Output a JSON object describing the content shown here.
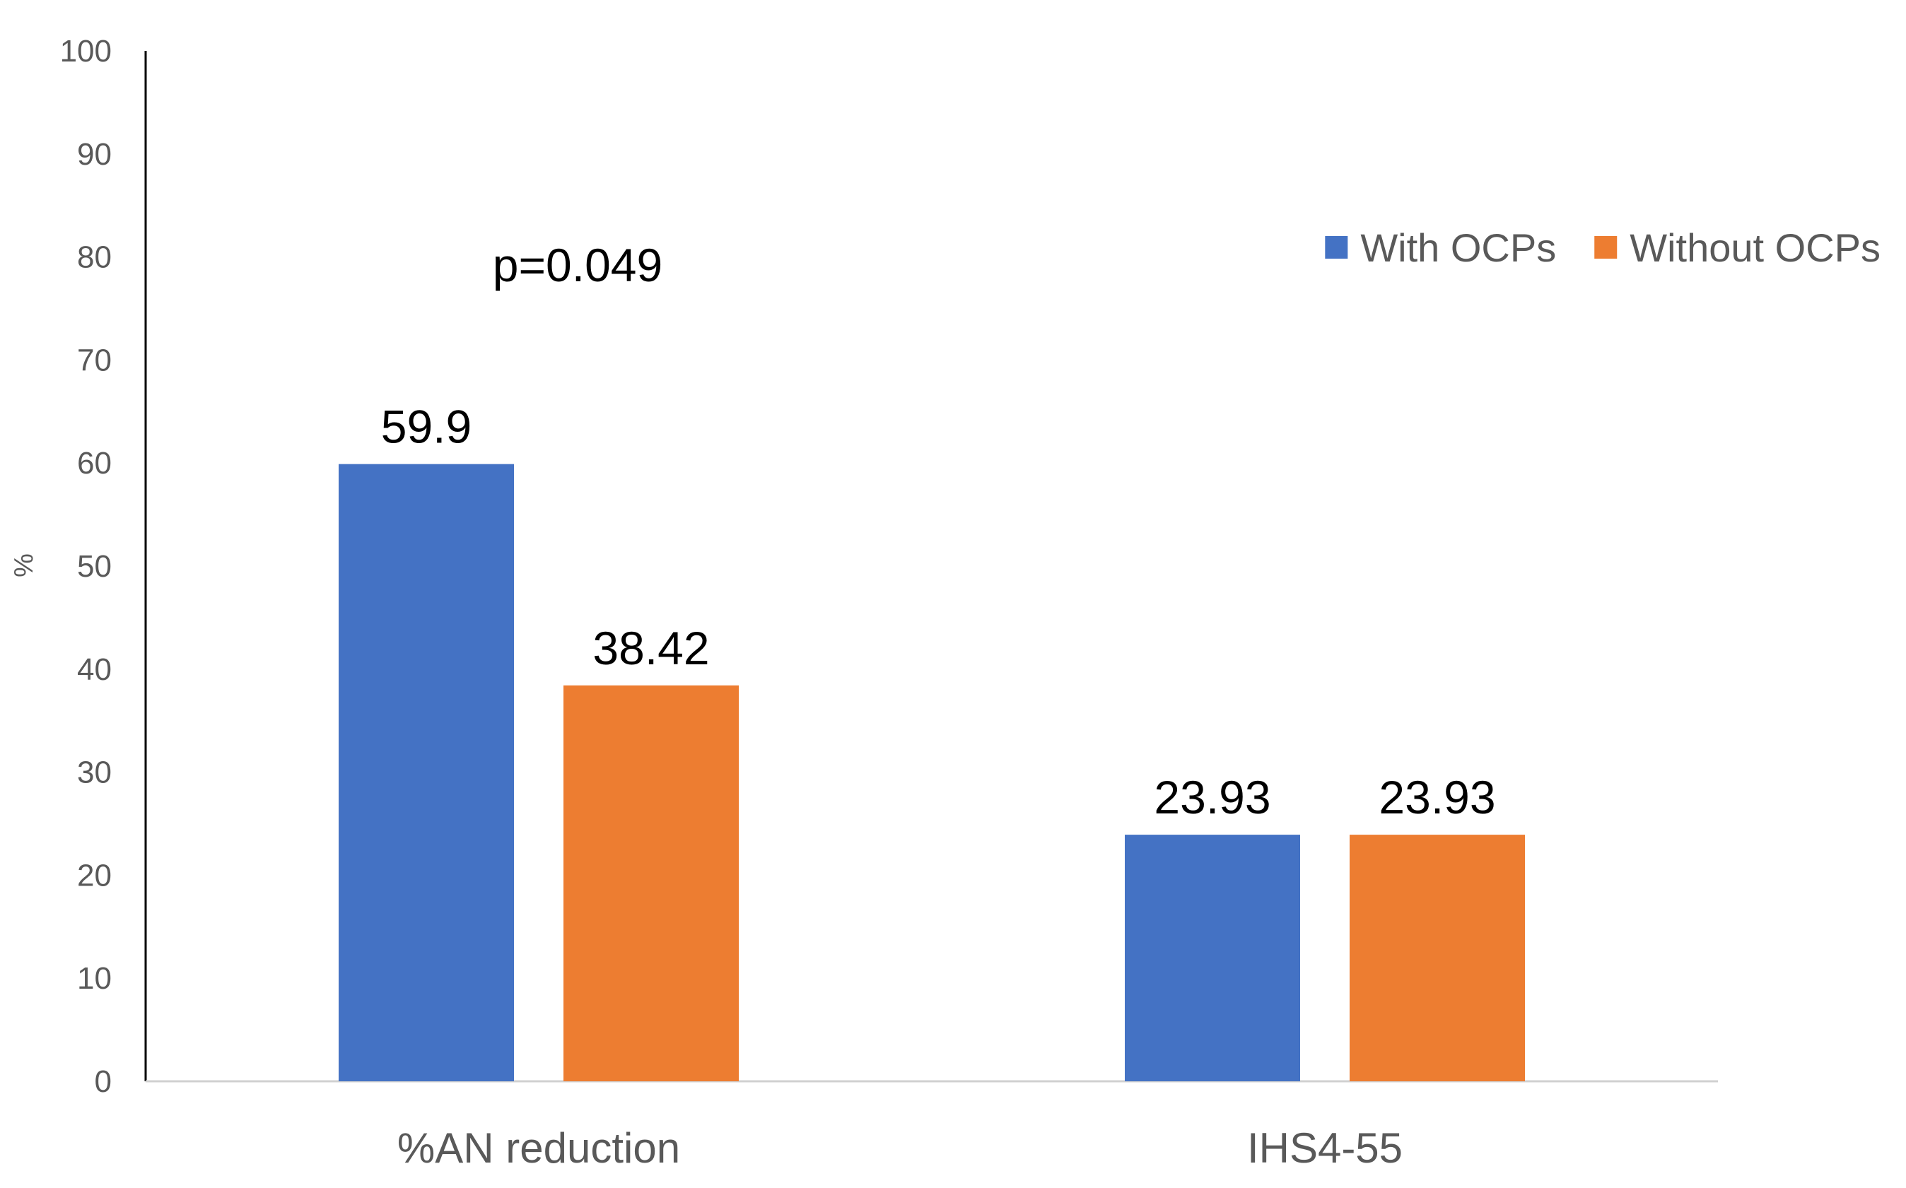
{
  "chart_data": {
    "type": "bar",
    "title": "",
    "xlabel": "",
    "ylabel": "%",
    "ylim": [
      0,
      100
    ],
    "yticks": [
      0,
      10,
      20,
      30,
      40,
      50,
      60,
      70,
      80,
      90,
      100
    ],
    "grid": false,
    "legend_position": "top-right",
    "categories": [
      "%AN reduction",
      "IHS4-55"
    ],
    "series": [
      {
        "name": "With OCPs",
        "color": "#4472C4",
        "values": [
          59.9,
          23.93
        ],
        "labels": [
          "59.9",
          "23.93"
        ]
      },
      {
        "name": "Without OCPs",
        "color": "#ED7D31",
        "values": [
          38.42,
          23.93
        ],
        "labels": [
          "38.42",
          "23.93"
        ]
      }
    ],
    "annotations": [
      {
        "text": "p=0.049",
        "category": "%AN reduction",
        "y": 79
      }
    ]
  }
}
